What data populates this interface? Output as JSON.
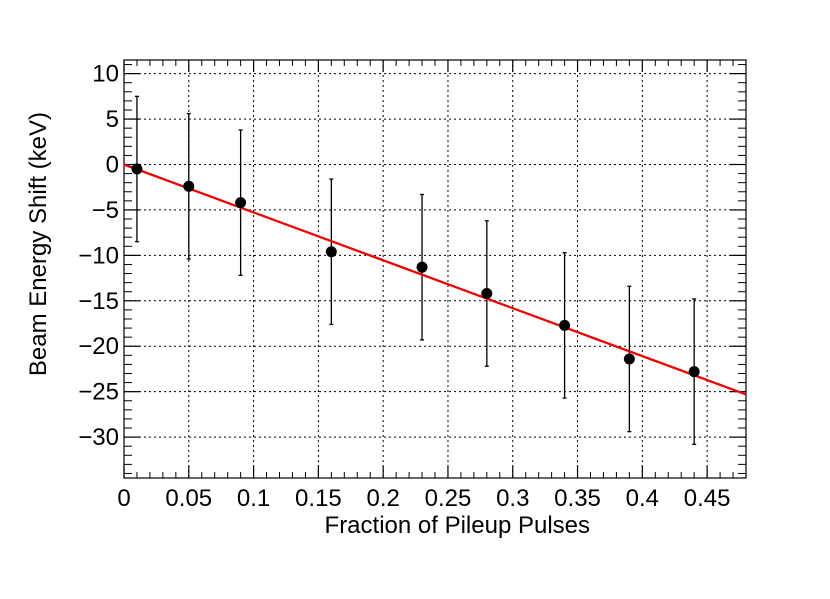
{
  "chart_data": {
    "type": "scatter",
    "title": "",
    "xlabel": "Fraction of Pileup Pulses",
    "ylabel": "Beam Energy Shift (keV)",
    "xlim": [
      0,
      0.48
    ],
    "ylim": [
      -34.5,
      11.5
    ],
    "grid": true,
    "x_ticks": [
      0,
      0.05,
      0.1,
      0.15,
      0.2,
      0.25,
      0.3,
      0.35,
      0.4,
      0.45
    ],
    "x_tick_labels": [
      "0",
      "0.05",
      "0.1",
      "0.15",
      "0.2",
      "0.25",
      "0.3",
      "0.35",
      "0.4",
      "0.45"
    ],
    "y_ticks": [
      10,
      5,
      0,
      -5,
      -10,
      -15,
      -20,
      -25,
      -30
    ],
    "y_tick_labels": [
      "10",
      "5",
      "0",
      "−5",
      "−10",
      "−15",
      "−20",
      "−25",
      "−30"
    ],
    "series": [
      {
        "x": [
          0.01,
          0.05,
          0.09,
          0.16,
          0.23,
          0.28,
          0.34,
          0.39,
          0.44
        ],
        "y": [
          -0.5,
          -2.4,
          -4.2,
          -9.6,
          -11.3,
          -14.2,
          -17.7,
          -21.4,
          -22.8
        ],
        "yerr": [
          8.0,
          8.0,
          8.0,
          8.0,
          8.0,
          8.0,
          8.0,
          8.0,
          8.0
        ],
        "color": "#000000"
      }
    ],
    "fit_line": {
      "x": [
        0.0,
        0.48
      ],
      "y": [
        0.0,
        -25.3
      ],
      "color": "#ee0000"
    }
  }
}
